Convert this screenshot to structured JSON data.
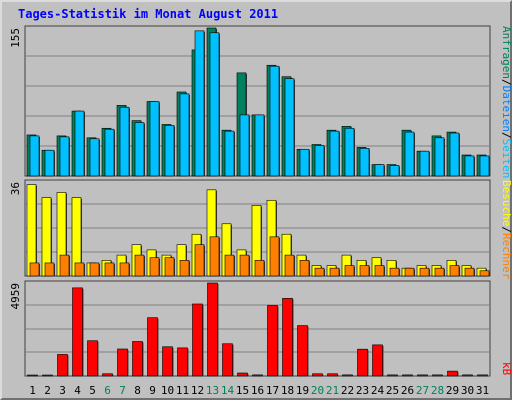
{
  "colors": {
    "background": "#c0c0c0",
    "plot_bg": "#c0c0c0",
    "grid": "#808080",
    "hits": "#00805c",
    "files": "#00c0ff",
    "pages": "#ffff00",
    "visits": "#ff8000",
    "kbytes": "#ff0000",
    "title": "#0000ff",
    "axis_text": "#000000",
    "weekend_text": "#00805c"
  },
  "chart_data": [
    {
      "type": "bar",
      "title": "Tages-Statistik im Monat August 2011",
      "ylabel_max": "155",
      "ylim": [
        0,
        155
      ],
      "categories": [
        "1",
        "2",
        "3",
        "4",
        "5",
        "6",
        "7",
        "8",
        "9",
        "10",
        "11",
        "12",
        "13",
        "14",
        "15",
        "16",
        "17",
        "18",
        "19",
        "20",
        "21",
        "22",
        "23",
        "24",
        "25",
        "26",
        "27",
        "28",
        "29",
        "30",
        "31"
      ],
      "weekend_days": [
        "6",
        "7",
        "13",
        "14",
        "20",
        "21",
        "27",
        "28"
      ],
      "series": [
        {
          "name": "Anfragen",
          "color": "#00805c",
          "values": [
            43,
            27,
            42,
            68,
            40,
            50,
            74,
            58,
            78,
            54,
            88,
            132,
            155,
            48,
            108,
            64,
            116,
            104,
            28,
            33,
            48,
            52,
            30,
            12,
            12,
            48,
            26,
            42,
            46,
            22,
            22
          ]
        },
        {
          "name": "Dateien",
          "color": "#00c0ff",
          "values": [
            42,
            27,
            41,
            68,
            39,
            49,
            72,
            56,
            78,
            53,
            86,
            152,
            150,
            47,
            64,
            64,
            115,
            102,
            28,
            32,
            47,
            50,
            29,
            12,
            11,
            46,
            26,
            40,
            45,
            21,
            21
          ]
        }
      ],
      "right_labels": [
        {
          "text": "Anfragen",
          "color": "#00805c"
        },
        {
          "text": "/",
          "color": "#000000"
        },
        {
          "text": "Dateien",
          "color": "#0080ff"
        },
        {
          "text": "/",
          "color": "#000000"
        },
        {
          "text": "Seiten",
          "color": "#00c0ff"
        }
      ]
    },
    {
      "type": "bar",
      "ylabel_max": "36",
      "ylim": [
        0,
        36
      ],
      "series": [
        {
          "name": "Seiten",
          "color": "#ffff00",
          "values": [
            35,
            30,
            32,
            30,
            5,
            6,
            8,
            12,
            10,
            8,
            12,
            16,
            33,
            20,
            10,
            27,
            29,
            16,
            8,
            4,
            4,
            8,
            6,
            7,
            6,
            3,
            4,
            4,
            6,
            4,
            3
          ]
        },
        {
          "name": "Besuche",
          "color": "#ff8000",
          "values": [
            5,
            5,
            8,
            5,
            5,
            5,
            5,
            8,
            7,
            7,
            6,
            12,
            15,
            8,
            8,
            6,
            15,
            8,
            6,
            3,
            3,
            4,
            4,
            4,
            3,
            3,
            3,
            3,
            4,
            3,
            2
          ]
        }
      ],
      "right_labels": [
        {
          "text": "Besuche",
          "color": "#ffff00"
        },
        {
          "text": "/",
          "color": "#000000"
        },
        {
          "text": "Rechner",
          "color": "#ff8000"
        }
      ]
    },
    {
      "type": "bar",
      "ylabel_max": "4959",
      "ylim": [
        0,
        4959
      ],
      "series": [
        {
          "name": "kB",
          "color": "#ff0000",
          "values": [
            40,
            40,
            1150,
            4700,
            1880,
            120,
            1440,
            1840,
            3110,
            1560,
            1500,
            3840,
            4959,
            1720,
            160,
            60,
            3760,
            4140,
            2690,
            120,
            120,
            60,
            1430,
            1660,
            60,
            60,
            60,
            60,
            260,
            60,
            60
          ]
        }
      ],
      "right_labels": [
        {
          "text": "kB",
          "color": "#ff0000"
        }
      ]
    }
  ]
}
